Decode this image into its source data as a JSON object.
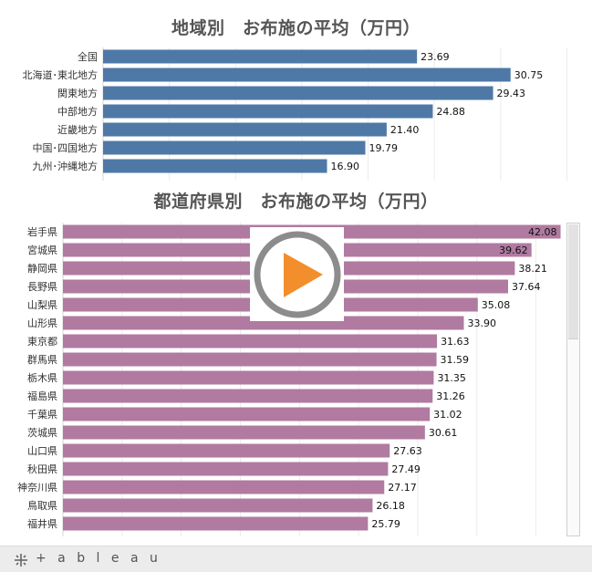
{
  "chart_data": [
    {
      "type": "bar",
      "orientation": "horizontal",
      "title": "地域別　お布施の平均（万円）",
      "categories": [
        "全国",
        "北海道･東北地方",
        "関東地方",
        "中部地方",
        "近畿地方",
        "中国･四国地方",
        "九州･沖縄地方"
      ],
      "values": [
        23.69,
        30.75,
        29.43,
        24.88,
        21.4,
        19.79,
        16.9
      ],
      "value_labels": [
        "23.69",
        "30.75",
        "29.43",
        "24.88",
        "21.40",
        "19.79",
        "16.90"
      ],
      "xlim": [
        0,
        36
      ],
      "grid": true
    },
    {
      "type": "bar",
      "orientation": "horizontal",
      "title": "都道府県別　お布施の平均（万円）",
      "categories": [
        "岩手県",
        "宮城県",
        "静岡県",
        "長野県",
        "山梨県",
        "山形県",
        "東京都",
        "群馬県",
        "栃木県",
        "福島県",
        "千葉県",
        "茨城県",
        "山口県",
        "秋田県",
        "神奈川県",
        "鳥取県",
        "福井県"
      ],
      "values": [
        42.08,
        39.62,
        38.21,
        37.64,
        35.08,
        33.9,
        31.63,
        31.59,
        31.35,
        31.26,
        31.02,
        30.61,
        27.63,
        27.49,
        27.17,
        26.18,
        25.79
      ],
      "value_labels": [
        "42.08",
        "39.62",
        "38.21",
        "37.64",
        "35.08",
        "33.90",
        "31.63",
        "31.59",
        "31.35",
        "31.26",
        "31.02",
        "30.61",
        "27.63",
        "27.49",
        "27.17",
        "26.18",
        "25.79"
      ],
      "xlim": [
        0,
        42.5
      ],
      "grid": true
    }
  ],
  "colors": {
    "region_bar": "#4e79a7",
    "prefecture_bar": "#b07aa1",
    "play_ring": "#8c8c8c",
    "play_triangle": "#f28e2b"
  },
  "overlay": {
    "icon": "play-icon"
  },
  "footer": {
    "brand": "+ a b l e a u",
    "brand_text": "tableau"
  }
}
